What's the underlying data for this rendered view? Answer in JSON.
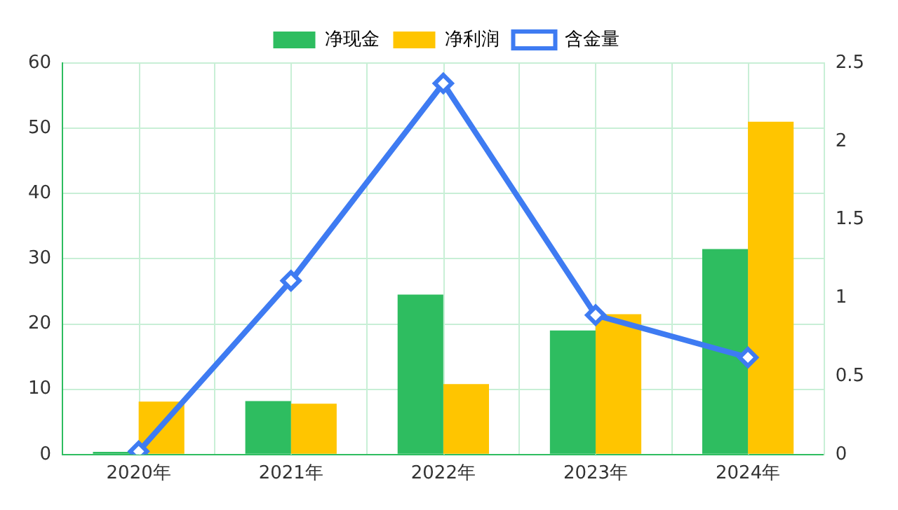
{
  "chart_data": {
    "type": "bar",
    "categories": [
      "2020年",
      "2021年",
      "2022年",
      "2023年",
      "2024年"
    ],
    "series": [
      {
        "name": "净现金",
        "color": "#2ebd60",
        "values": [
          0.4,
          8.2,
          24.5,
          19,
          31.5
        ]
      },
      {
        "name": "净利润",
        "color": "#ffc500",
        "values": [
          8.1,
          7.8,
          10.8,
          21.5,
          51
        ]
      },
      {
        "name": "含金量",
        "type": "line",
        "axis": "y2",
        "color": "#3e7bf2",
        "values": [
          0.02,
          1.11,
          2.37,
          0.89,
          0.62
        ]
      }
    ],
    "ylim": [
      0,
      60
    ],
    "yticks": [
      0,
      10,
      20,
      30,
      40,
      50,
      60
    ],
    "y2lim": [
      0,
      2.5
    ],
    "y2ticks": [
      0,
      0.5,
      1,
      1.5,
      2,
      2.5
    ],
    "grid": true,
    "legend": "top",
    "marker": "diamond",
    "line_style": "solid"
  }
}
